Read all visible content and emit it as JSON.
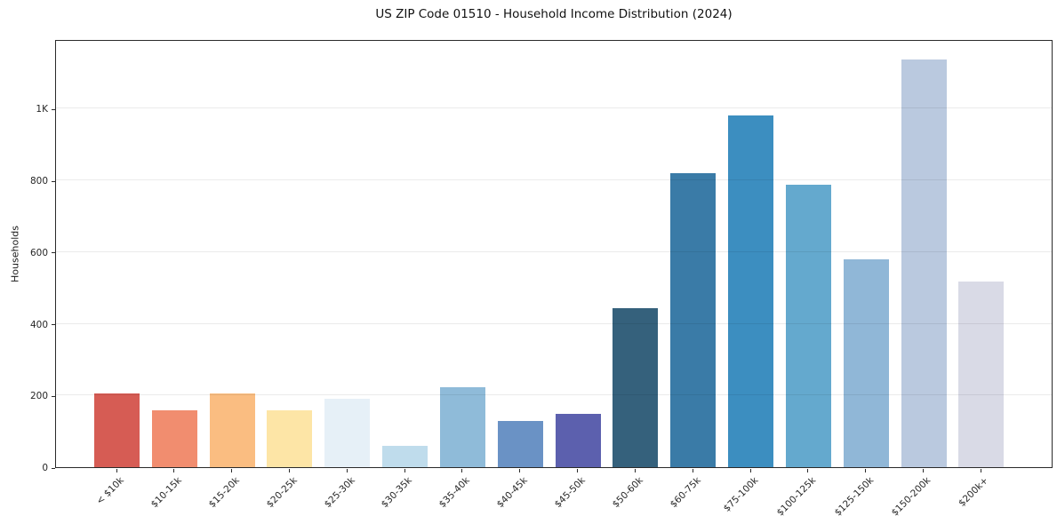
{
  "chart_data": {
    "type": "bar",
    "title": "US ZIP Code 01510 - Household Income Distribution (2024)",
    "xlabel": "",
    "ylabel": "Households",
    "ylim": [
      0,
      1194
    ],
    "grid": true,
    "legend": false,
    "grid_position": "above-bars",
    "yticks": [
      {
        "value": 0,
        "label": "0"
      },
      {
        "value": 200,
        "label": "200"
      },
      {
        "value": 400,
        "label": "400"
      },
      {
        "value": 600,
        "label": "600"
      },
      {
        "value": 800,
        "label": "800"
      },
      {
        "value": 1000,
        "label": "1K"
      }
    ],
    "categories": [
      "< $10k",
      "$10-15k",
      "$15-20k",
      "$20-25k",
      "$25-30k",
      "$30-35k",
      "$35-40k",
      "$40-45k",
      "$45-50k",
      "$50-60k",
      "$60-75k",
      "$75-100k",
      "$100-125k",
      "$125-150k",
      "$150-200k",
      "$200k+"
    ],
    "values": [
      205,
      158,
      205,
      158,
      190,
      60,
      224,
      130,
      148,
      443,
      820,
      982,
      788,
      580,
      1137,
      518
    ],
    "bar_colors": [
      "#d65c54",
      "#f18d6f",
      "#fabd81",
      "#fde5a6",
      "#e6f0f7",
      "#bfdcec",
      "#8fbbd9",
      "#6a92c5",
      "#5c60ae",
      "#35617c",
      "#3a7ba7",
      "#3c8ec0",
      "#64a9ce",
      "#90b7d7",
      "#bac9df",
      "#d9dae6"
    ],
    "axis_color": "#2a2a2a",
    "grid_color": "rgba(0,0,0,0.08)",
    "background": "#ffffff"
  }
}
